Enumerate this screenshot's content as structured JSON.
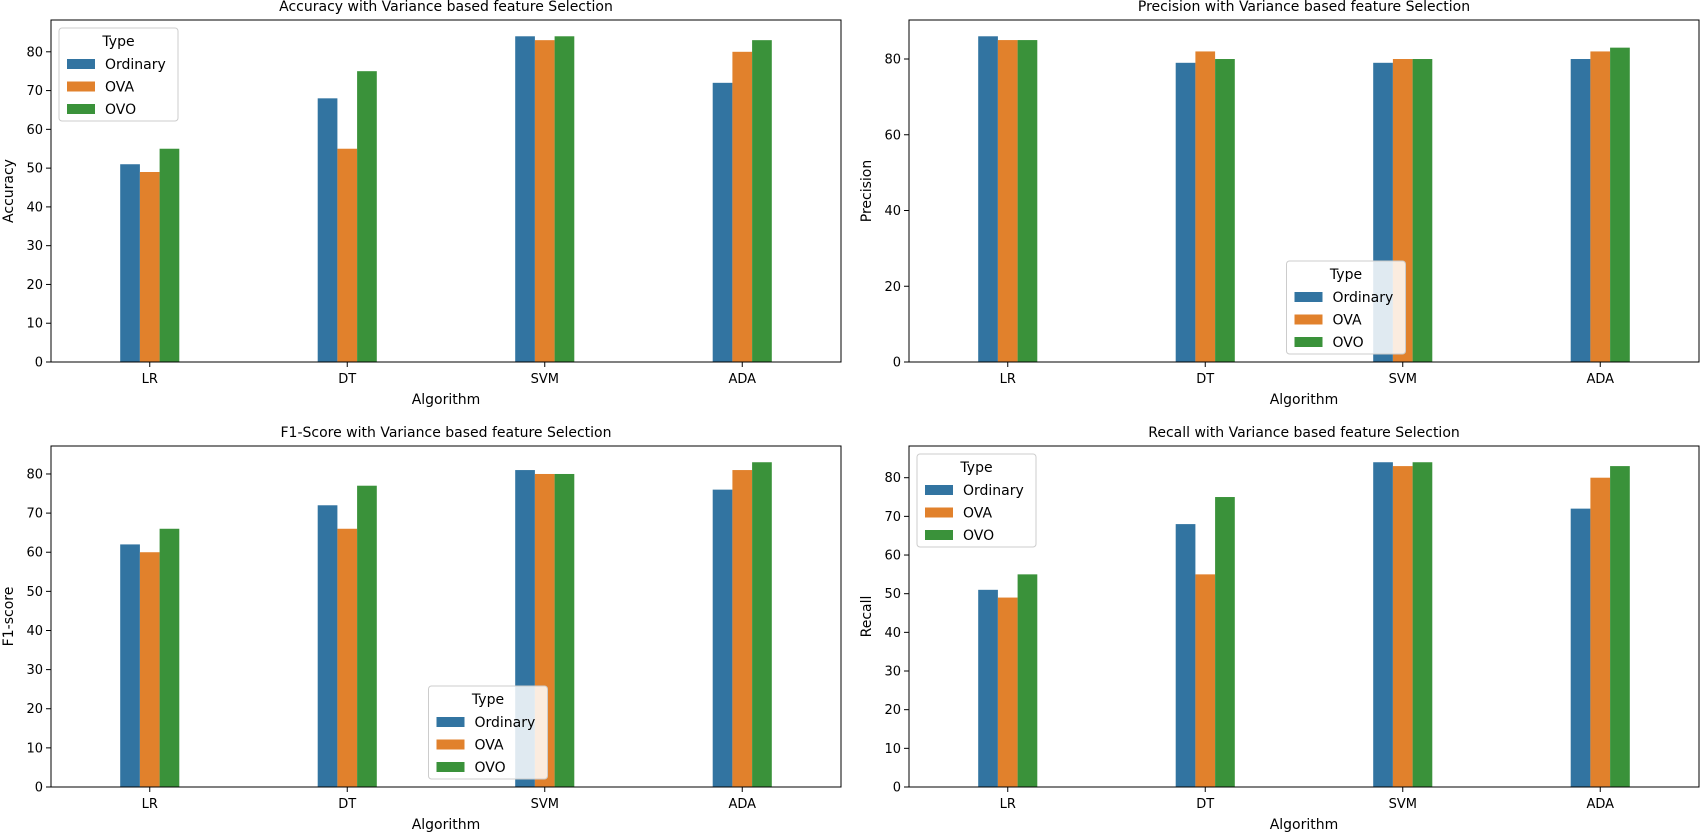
{
  "legend_title": "Type",
  "colors": {
    "Ordinary": "#3274a1",
    "OVA": "#e1812c",
    "OVO": "#3a923a"
  },
  "chart_data": [
    {
      "type": "bar",
      "title": "Accuracy with Variance based feature Selection",
      "xlabel": "Algorithm",
      "ylabel": "Accuracy",
      "categories": [
        "LR",
        "DT",
        "SVM",
        "ADA"
      ],
      "series": [
        {
          "name": "Ordinary",
          "values": [
            51,
            68,
            84,
            72
          ]
        },
        {
          "name": "OVA",
          "values": [
            49,
            55,
            83,
            80
          ]
        },
        {
          "name": "OVO",
          "values": [
            55,
            75,
            84,
            83
          ]
        }
      ],
      "ylim": [
        0,
        88.2
      ],
      "yticks": [
        0,
        10,
        20,
        30,
        40,
        50,
        60,
        70,
        80
      ],
      "legend": "upper-left"
    },
    {
      "type": "bar",
      "title": "Precision with Variance based feature Selection",
      "xlabel": "Algorithm",
      "ylabel": "Precision",
      "categories": [
        "LR",
        "DT",
        "SVM",
        "ADA"
      ],
      "series": [
        {
          "name": "Ordinary",
          "values": [
            86,
            79,
            79,
            80
          ]
        },
        {
          "name": "OVA",
          "values": [
            85,
            82,
            80,
            82
          ]
        },
        {
          "name": "OVO",
          "values": [
            85,
            80,
            80,
            83
          ]
        }
      ],
      "ylim": [
        0,
        90.3
      ],
      "yticks": [
        0,
        20,
        40,
        60,
        80
      ],
      "legend": "lower-center"
    },
    {
      "type": "bar",
      "title": "F1-Score with Variance based feature Selection",
      "xlabel": "Algorithm",
      "ylabel": "F1-score",
      "categories": [
        "LR",
        "DT",
        "SVM",
        "ADA"
      ],
      "series": [
        {
          "name": "Ordinary",
          "values": [
            62,
            72,
            81,
            76
          ]
        },
        {
          "name": "OVA",
          "values": [
            60,
            66,
            80,
            81
          ]
        },
        {
          "name": "OVO",
          "values": [
            66,
            77,
            80,
            83
          ]
        }
      ],
      "ylim": [
        0,
        87.15
      ],
      "yticks": [
        0,
        10,
        20,
        30,
        40,
        50,
        60,
        70,
        80
      ],
      "legend": "lower-center"
    },
    {
      "type": "bar",
      "title": "Recall with Variance based feature Selection",
      "xlabel": "Algorithm",
      "ylabel": "Recall",
      "categories": [
        "LR",
        "DT",
        "SVM",
        "ADA"
      ],
      "series": [
        {
          "name": "Ordinary",
          "values": [
            51,
            68,
            84,
            72
          ]
        },
        {
          "name": "OVA",
          "values": [
            49,
            55,
            83,
            80
          ]
        },
        {
          "name": "OVO",
          "values": [
            55,
            75,
            84,
            83
          ]
        }
      ],
      "ylim": [
        0,
        88.2
      ],
      "yticks": [
        0,
        10,
        20,
        30,
        40,
        50,
        60,
        70,
        80
      ],
      "legend": "upper-left"
    }
  ]
}
